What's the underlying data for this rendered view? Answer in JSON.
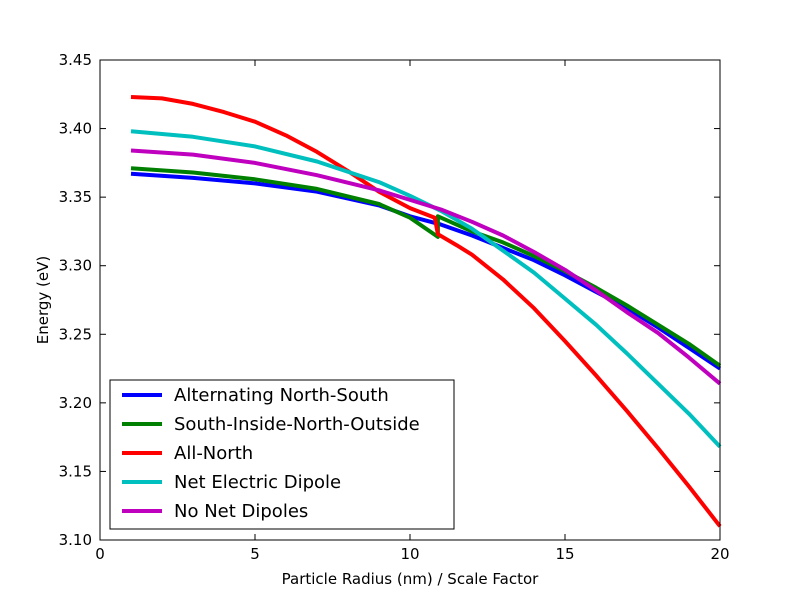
{
  "chart_data": {
    "type": "line",
    "xlabel": "Particle Radius (nm) / Scale Factor",
    "ylabel": "Energy (eV)",
    "xlim": [
      0,
      20
    ],
    "ylim": [
      3.1,
      3.45
    ],
    "xticks": [
      0,
      5,
      10,
      15,
      20
    ],
    "xtick_labels": [
      "0",
      "5",
      "10",
      "15",
      "20"
    ],
    "yticks": [
      3.1,
      3.15,
      3.2,
      3.25,
      3.3,
      3.35,
      3.4,
      3.45
    ],
    "ytick_labels": [
      "3.10",
      "3.15",
      "3.20",
      "3.25",
      "3.30",
      "3.35",
      "3.40",
      "3.45"
    ],
    "grid": false,
    "legend_position": "lower-left",
    "series": [
      {
        "name": "Alternating North-South",
        "color": "#0000ff",
        "x": [
          1,
          3,
          5,
          7,
          9,
          10,
          11,
          12,
          13,
          14,
          15,
          16,
          17,
          18,
          19,
          20
        ],
        "y": [
          3.367,
          3.364,
          3.36,
          3.354,
          3.344,
          3.336,
          3.33,
          3.322,
          3.313,
          3.304,
          3.293,
          3.281,
          3.269,
          3.255,
          3.24,
          3.225
        ]
      },
      {
        "name": "South-Inside-North-Outside",
        "color": "#008000",
        "x": [
          1,
          3,
          5,
          7,
          9,
          10,
          10.9,
          10.9,
          12,
          13,
          14,
          15,
          16,
          17,
          18,
          19,
          20
        ],
        "y": [
          3.371,
          3.368,
          3.363,
          3.356,
          3.345,
          3.335,
          3.321,
          3.336,
          3.325,
          3.317,
          3.307,
          3.296,
          3.284,
          3.271,
          3.257,
          3.243,
          3.227
        ]
      },
      {
        "name": "All-North",
        "color": "#ff0000",
        "x": [
          1,
          2,
          3,
          4,
          5,
          6,
          7,
          8,
          9,
          10,
          10.8,
          10.9,
          11.5,
          12,
          13,
          14,
          15,
          16,
          17,
          18,
          19,
          20
        ],
        "y": [
          3.423,
          3.422,
          3.418,
          3.412,
          3.405,
          3.395,
          3.383,
          3.369,
          3.354,
          3.342,
          3.335,
          3.323,
          3.315,
          3.308,
          3.29,
          3.269,
          3.245,
          3.22,
          3.194,
          3.167,
          3.139,
          3.11
        ]
      },
      {
        "name": "Net Electric Dipole",
        "color": "#00bfbf",
        "x": [
          1,
          3,
          5,
          7,
          9,
          10,
          11,
          12,
          13,
          14,
          15,
          16,
          17,
          18,
          19,
          20
        ],
        "y": [
          3.398,
          3.394,
          3.387,
          3.376,
          3.361,
          3.351,
          3.34,
          3.327,
          3.311,
          3.295,
          3.276,
          3.257,
          3.236,
          3.214,
          3.192,
          3.168
        ]
      },
      {
        "name": "No Net Dipoles",
        "color": "#bf00bf",
        "x": [
          1,
          3,
          5,
          7,
          9,
          10,
          11,
          12,
          13,
          14,
          15,
          16,
          17,
          18,
          19,
          20
        ],
        "y": [
          3.384,
          3.381,
          3.375,
          3.366,
          3.355,
          3.348,
          3.341,
          3.332,
          3.322,
          3.31,
          3.297,
          3.282,
          3.266,
          3.251,
          3.233,
          3.214
        ]
      }
    ]
  }
}
